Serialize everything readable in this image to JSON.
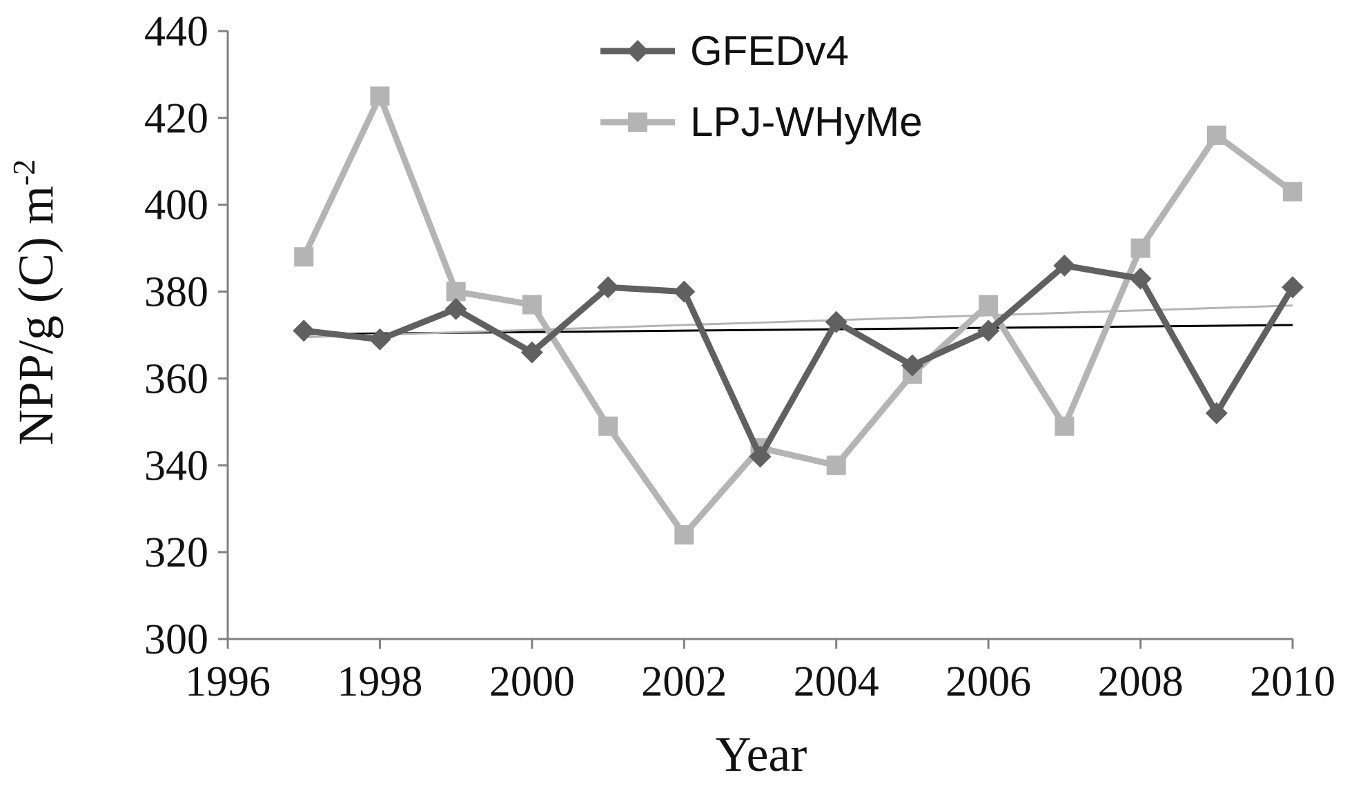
{
  "chart_data": {
    "type": "line",
    "xlabel": "Year",
    "ylabel": "NPP/g (C) m",
    "ylabel_sup": "-2",
    "xlim": [
      1996,
      2010
    ],
    "ylim": [
      300,
      440
    ],
    "x_ticks": [
      "1996",
      "1998",
      "2000",
      "2002",
      "2004",
      "2006",
      "2008",
      "2010"
    ],
    "y_ticks": [
      "300",
      "320",
      "340",
      "360",
      "380",
      "400",
      "420",
      "440"
    ],
    "grid": false,
    "legend_position": "top-center",
    "x": [
      1997,
      1998,
      1999,
      2000,
      2001,
      2002,
      2003,
      2004,
      2005,
      2006,
      2007,
      2008,
      2009,
      2010
    ],
    "series": [
      {
        "name": "GFEDv4",
        "marker": "diamond",
        "color": "#606060",
        "values": [
          371,
          369,
          376,
          366,
          381,
          380,
          342,
          373,
          363,
          371,
          386,
          383,
          352,
          381
        ]
      },
      {
        "name": "LPJ-WHyMe",
        "marker": "square",
        "color": "#b4b4b4",
        "values": [
          388,
          425,
          380,
          377,
          349,
          324,
          344,
          340,
          361,
          377,
          349,
          390,
          416,
          403
        ]
      }
    ],
    "trendlines": [
      {
        "of": "GFEDv4",
        "color": "#000000",
        "start": [
          1997,
          370.2
        ],
        "end": [
          2010,
          372.3
        ]
      },
      {
        "of": "LPJ-WHyMe",
        "color": "#b4b4b4",
        "start": [
          1997,
          369.5
        ],
        "end": [
          2010,
          376.8
        ]
      }
    ]
  }
}
